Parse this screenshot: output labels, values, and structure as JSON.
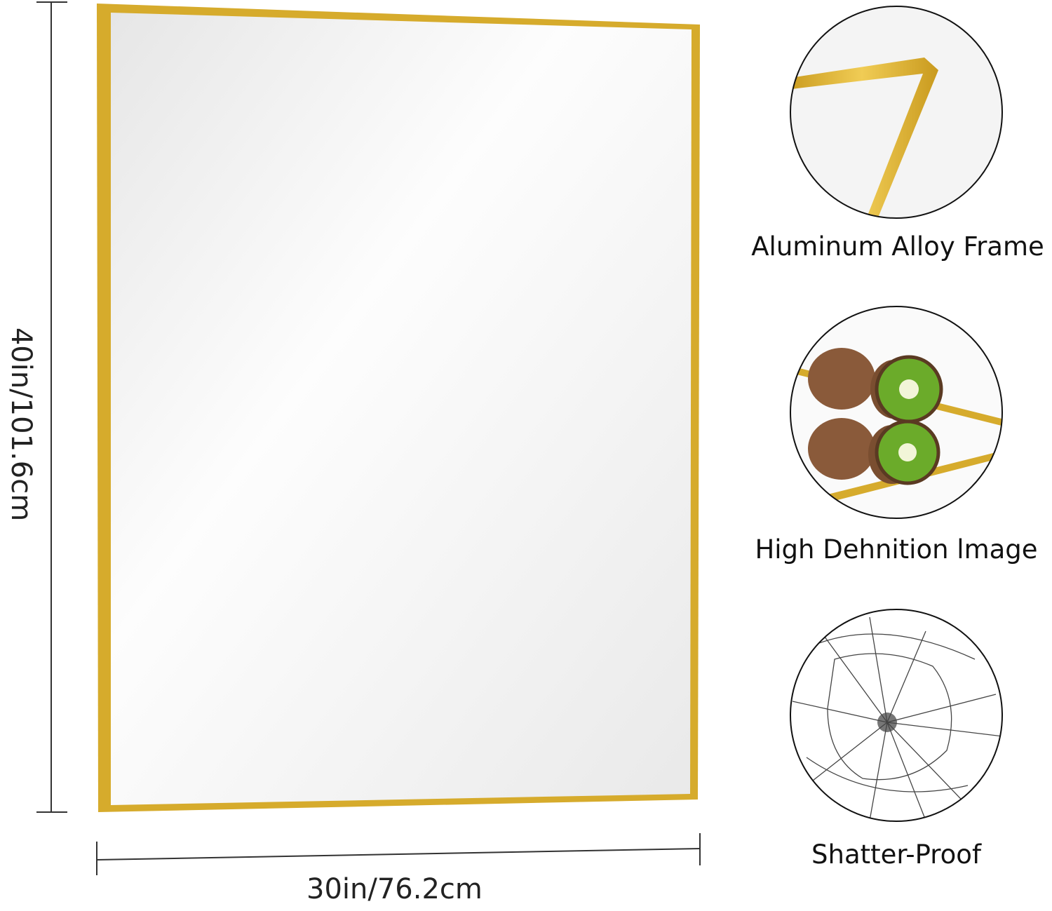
{
  "dimensions": {
    "height_label": "40in/101.6cm",
    "width_label": "30in/76.2cm"
  },
  "features": [
    {
      "label": "Aluminum Alloy Frame",
      "icon": "frame-corner-closeup"
    },
    {
      "label": "High Dehnition lmage",
      "icon": "kiwi-reflection"
    },
    {
      "label": "Shatter-Proof",
      "icon": "cracked-glass"
    }
  ],
  "colors": {
    "frame": "#d6ab2c",
    "mirror": "#f3f3f3",
    "outline": "#111111"
  }
}
